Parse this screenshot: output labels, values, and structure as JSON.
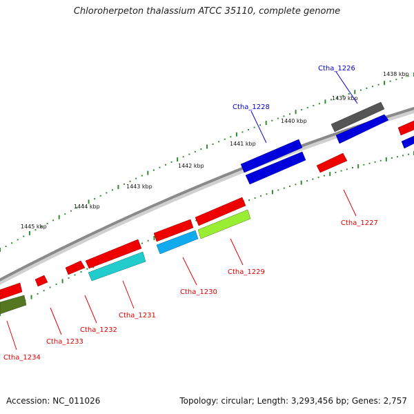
{
  "title": "Chloroherpeton thalassium ATCC 35110, complete genome",
  "footer": {
    "accession": "Accession: NC_011026",
    "summary": "Topology: circular; Length: 3,293,456 bp; Genes: 2,757"
  },
  "colors": {
    "backbone": "#8a8a8a",
    "tick_dot": "#2e8b2e",
    "label_red": "#dd0000",
    "label_blue": "#0000cc"
  },
  "scale_labels": [
    "1438 kbp",
    "1439 kbp",
    "1440 kbp",
    "1441 kbp",
    "1442 kbp",
    "1443 kbp",
    "1444 kbp",
    "1445 kbp"
  ],
  "gene_labels": [
    {
      "text": "Ctha_1226",
      "color": "blue"
    },
    {
      "text": "Ctha_1227",
      "color": "red"
    },
    {
      "text": "Ctha_1228",
      "color": "blue"
    },
    {
      "text": "Ctha_1229",
      "color": "red"
    },
    {
      "text": "Ctha_1230",
      "color": "red"
    },
    {
      "text": "Ctha_1231",
      "color": "red"
    },
    {
      "text": "Ctha_1232",
      "color": "red"
    },
    {
      "text": "Ctha_1233",
      "color": "red"
    },
    {
      "text": "Ctha_1234",
      "color": "red"
    }
  ],
  "gene_colors": {
    "red": "#ee0000",
    "blue": "#0000dd",
    "gray": "#555555",
    "cyan": "#22cccc",
    "skyblue": "#11aaee",
    "lime": "#99ee33",
    "olive": "#557722"
  }
}
